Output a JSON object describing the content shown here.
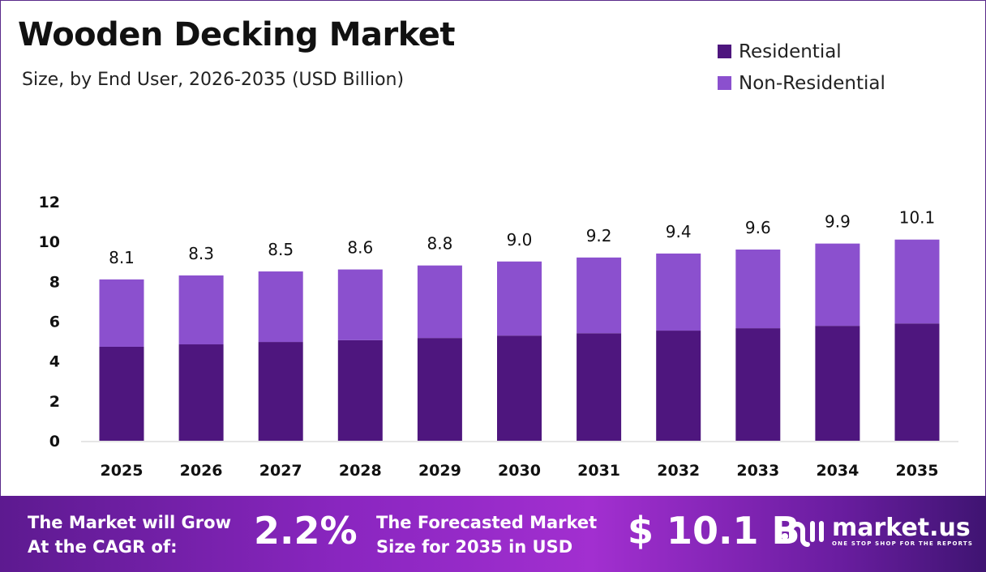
{
  "header": {
    "title": "Wooden Decking Market",
    "subtitle": "Size, by End User, 2026-2035 (USD Billion)"
  },
  "colors": {
    "residential": "#4E167E",
    "non_residential": "#8B50CE"
  },
  "chart_data": {
    "type": "bar",
    "stacked": true,
    "title": "Wooden Decking Market",
    "subtitle": "Size, by End User, 2026-2035 (USD Billion)",
    "categories": [
      "2025",
      "2026",
      "2027",
      "2028",
      "2029",
      "2030",
      "2031",
      "2032",
      "2033",
      "2034",
      "2035"
    ],
    "totals": [
      "8.1",
      "8.3",
      "8.5",
      "8.6",
      "8.8",
      "9.0",
      "9.2",
      "9.4",
      "9.6",
      "9.9",
      "10.1"
    ],
    "series": [
      {
        "name": "Residential",
        "values": [
          4.72,
          4.84,
          4.96,
          5.05,
          5.16,
          5.28,
          5.4,
          5.53,
          5.65,
          5.77,
          5.89
        ]
      },
      {
        "name": "Non-Residential",
        "values": [
          3.38,
          3.46,
          3.54,
          3.55,
          3.64,
          3.72,
          3.8,
          3.87,
          3.95,
          4.13,
          4.21
        ]
      }
    ],
    "yticks": [
      "0",
      "2",
      "4",
      "6",
      "8",
      "10",
      "12"
    ],
    "ylim": [
      0,
      12
    ],
    "grid": false,
    "legend": "top-right"
  },
  "footer": {
    "cagr_label_1": "The Market will Grow",
    "cagr_label_2": "At the CAGR of:",
    "cagr_value": "2.2%",
    "forecast_label_1": "The Forecasted Market",
    "forecast_label_2": "Size for 2035 in USD",
    "forecast_value": "$ 10.1 B",
    "logo_name": "market.us",
    "logo_tagline": "ONE STOP SHOP FOR THE REPORTS"
  }
}
